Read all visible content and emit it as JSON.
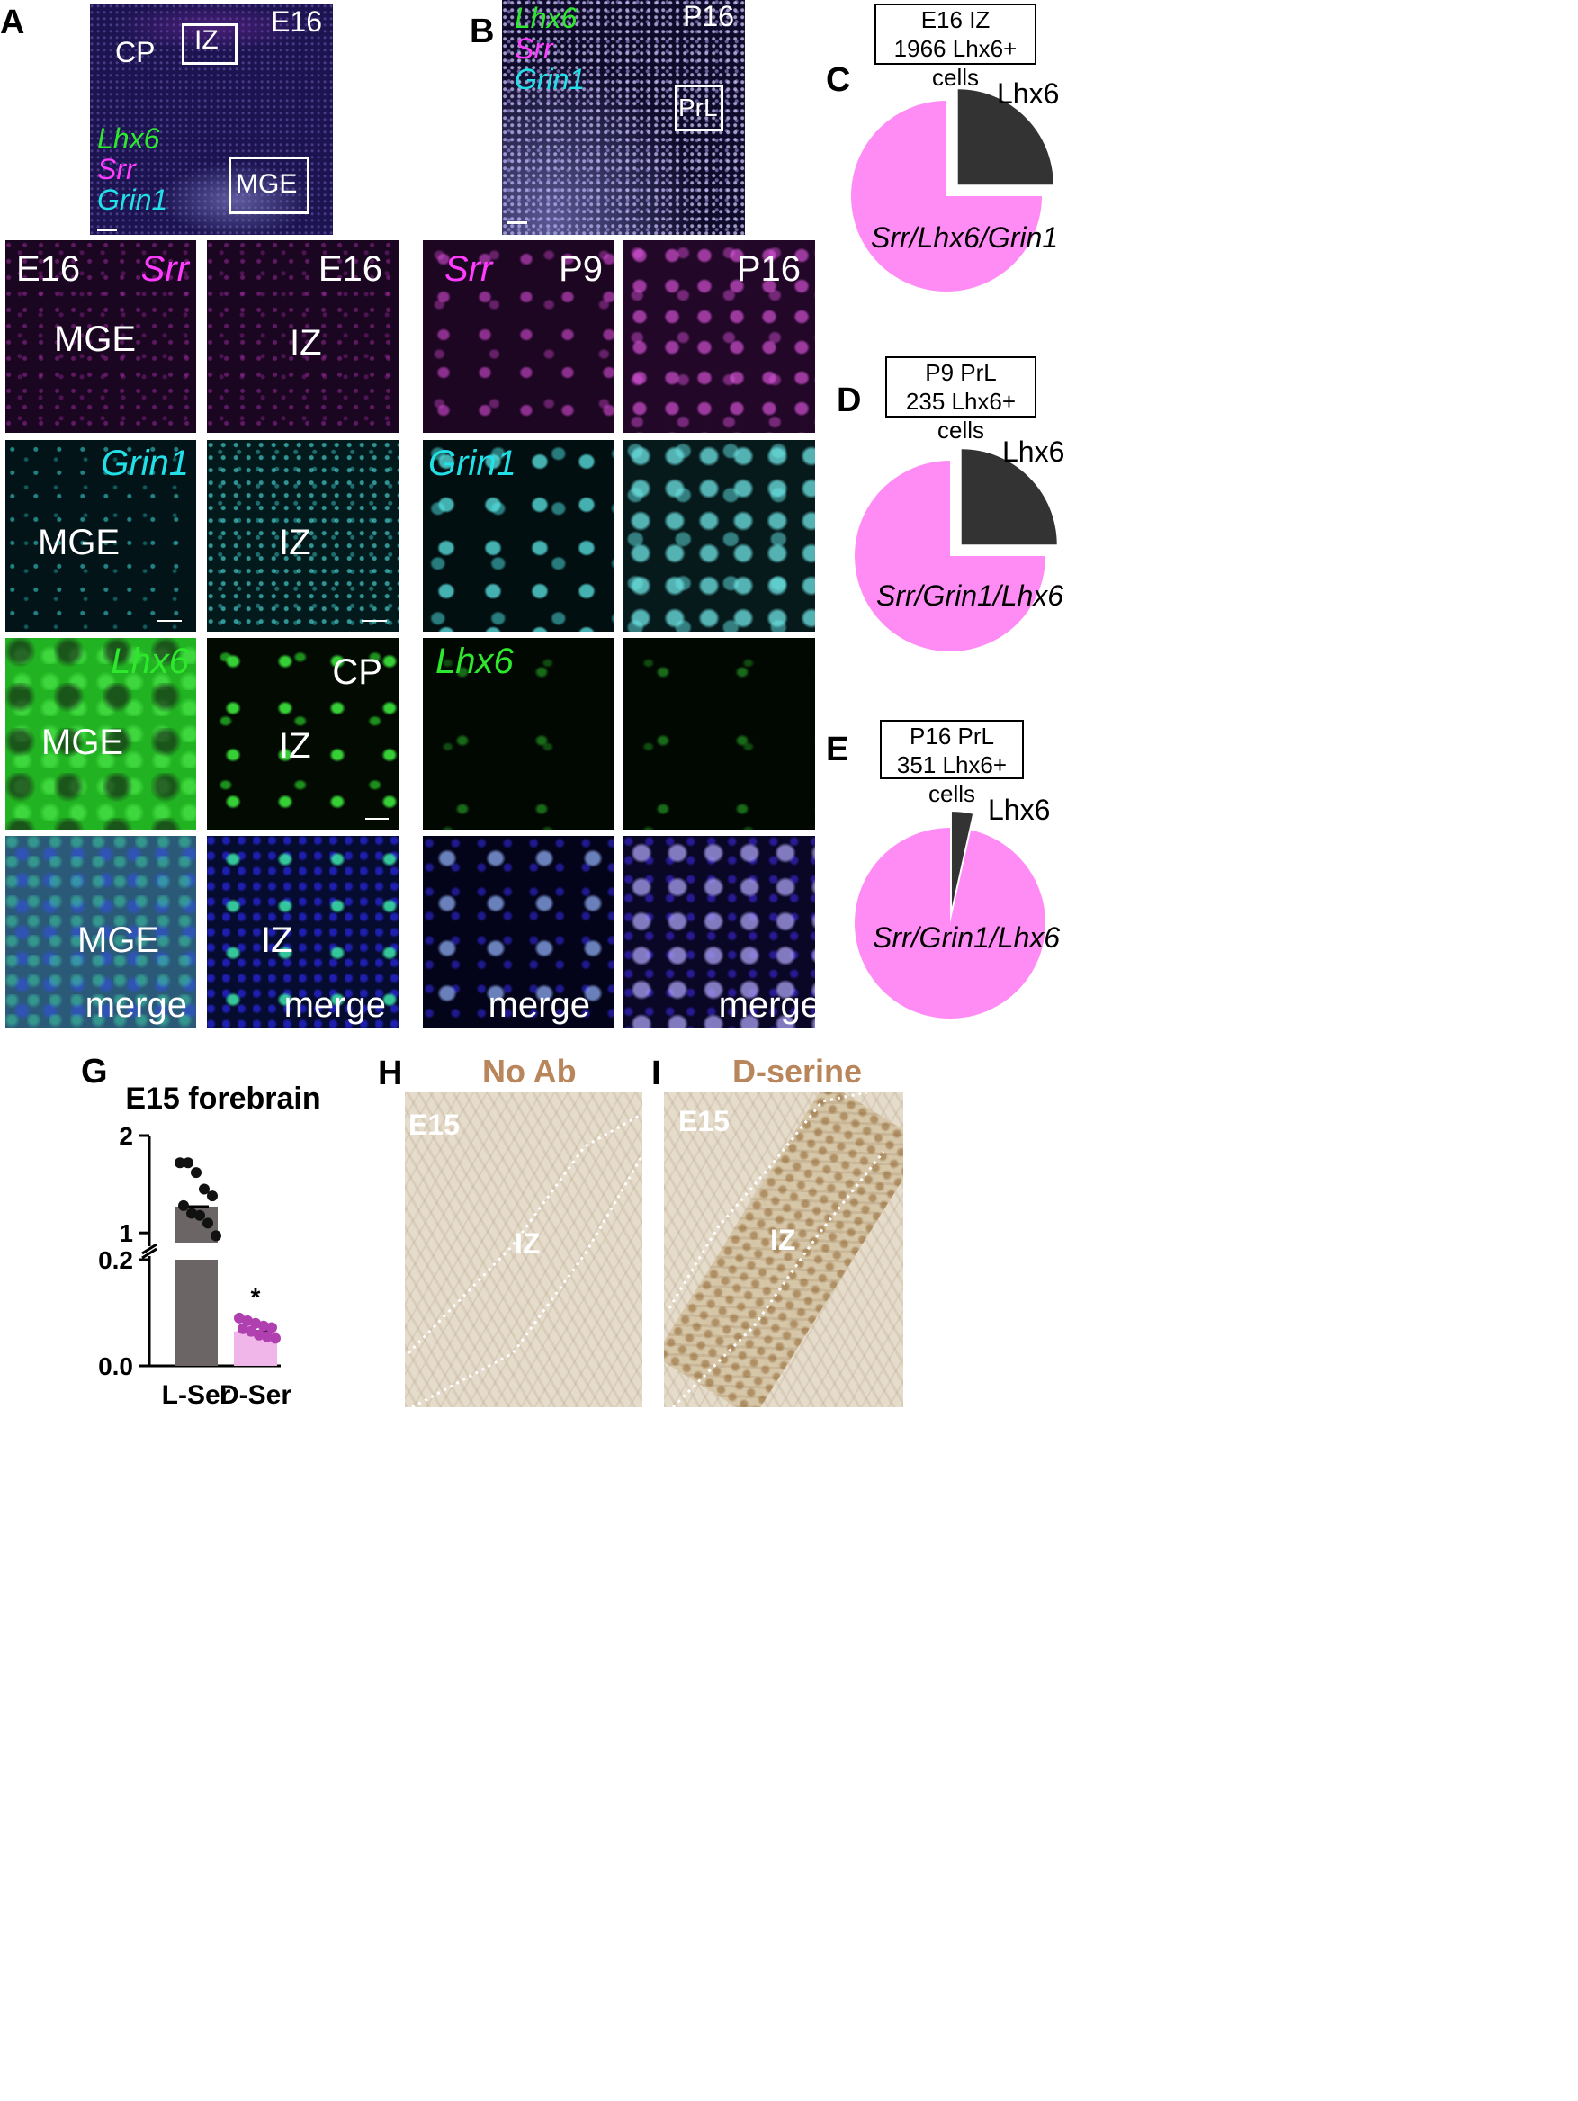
{
  "panels": {
    "A": {
      "letter": "A",
      "overview": {
        "stage": "E16",
        "region_cp": "CP",
        "region_iz": "IZ",
        "region_mge": "MGE",
        "legend": [
          "Lhx6",
          "Srr",
          "Grin1"
        ]
      },
      "row_srr": {
        "left": {
          "stage": "E16",
          "gene": "Srr",
          "region": "MGE"
        },
        "right": {
          "stage": "E16",
          "region": "IZ"
        }
      },
      "row_grin1": {
        "left": {
          "gene": "Grin1",
          "region": "MGE"
        },
        "right": {
          "region": "IZ"
        }
      },
      "row_lhx6": {
        "left": {
          "gene": "Lhx6",
          "region": "MGE"
        },
        "right": {
          "region_cp": "CP",
          "region": "IZ"
        }
      },
      "row_merge": {
        "left": {
          "region": "MGE",
          "tag": "merge"
        },
        "right": {
          "region": "IZ",
          "tag": "merge"
        }
      }
    },
    "B": {
      "letter": "B",
      "overview": {
        "stage": "P16",
        "region": "PrL",
        "legend": [
          "Lhx6",
          "Srr",
          "Grin1"
        ]
      },
      "row_srr": {
        "left": {
          "gene": "Srr",
          "stage": "P9"
        },
        "right": {
          "stage": "P16"
        }
      },
      "row_grin1": {
        "left": {
          "gene": "Grin1"
        }
      },
      "row_lhx6": {
        "left": {
          "gene": "Lhx6"
        }
      },
      "row_merge": {
        "left": {
          "tag": "merge"
        },
        "right": {
          "tag": "merge"
        }
      }
    },
    "C": {
      "letter": "C",
      "box_line1": "E16 IZ",
      "box_line2": "1966 Lhx6+ cells",
      "slice_small": "Lhx6",
      "slice_large": "Srr/Lhx6/Grin1"
    },
    "D": {
      "letter": "D",
      "box_line1": "P9 PrL",
      "box_line2": "235 Lhx6+ cells",
      "slice_small": "Lhx6",
      "slice_large": "Srr/Grin1/Lhx6"
    },
    "E": {
      "letter": "E",
      "box_line1": "P16 PrL",
      "box_line2": "351 Lhx6+ cells",
      "slice_small": "Lhx6",
      "slice_large": "Srr/Grin1/Lhx6"
    },
    "G": {
      "letter": "G"
    },
    "H": {
      "letter": "H",
      "title": "No Ab",
      "stage": "E15",
      "region": "IZ"
    },
    "I": {
      "letter": "I",
      "title": "D-serine",
      "stage": "E15",
      "region": "IZ"
    }
  },
  "colors": {
    "green": "#2ee82e",
    "magenta": "#ff3cff",
    "cyan": "#22e0e8",
    "pie_pink": "#ff8cf5",
    "pie_dark": "#333333",
    "bar_lser": "#6b6565",
    "bar_dser": "#f0b6ea",
    "dot_dser": "#b040b0",
    "brown_title": "#b8865a"
  },
  "chart_data": [
    {
      "type": "pie",
      "panel": "C",
      "slices": [
        {
          "label": "Srr/Lhx6/Grin1",
          "fraction": 0.75
        },
        {
          "label": "Lhx6",
          "fraction": 0.25
        }
      ]
    },
    {
      "type": "pie",
      "panel": "D",
      "slices": [
        {
          "label": "Srr/Grin1/Lhx6",
          "fraction": 0.75
        },
        {
          "label": "Lhx6",
          "fraction": 0.25
        }
      ]
    },
    {
      "type": "pie",
      "panel": "E",
      "slices": [
        {
          "label": "Srr/Grin1/Lhx6",
          "fraction": 0.965
        },
        {
          "label": "Lhx6",
          "fraction": 0.035
        }
      ]
    },
    {
      "type": "bar",
      "panel": "G",
      "title": "E15 forebrain",
      "categories": [
        "L-Ser",
        "D-Ser"
      ],
      "values": [
        1.27,
        0.065
      ],
      "points": {
        "L-Ser": [
          1.72,
          1.72,
          1.62,
          1.45,
          1.38,
          1.28,
          1.2,
          1.18,
          1.1,
          0.97
        ],
        "D-Ser": [
          0.09,
          0.085,
          0.08,
          0.075,
          0.072,
          0.07,
          0.065,
          0.058,
          0.055,
          0.052
        ]
      },
      "significance": {
        "D-Ser": "*"
      },
      "y_axis": {
        "broken": true,
        "lower_range": [
          0.0,
          0.2
        ],
        "upper_range": [
          0.9,
          2.0
        ],
        "ticks": [
          "0.0",
          "0.2",
          "1",
          "2"
        ]
      }
    }
  ]
}
